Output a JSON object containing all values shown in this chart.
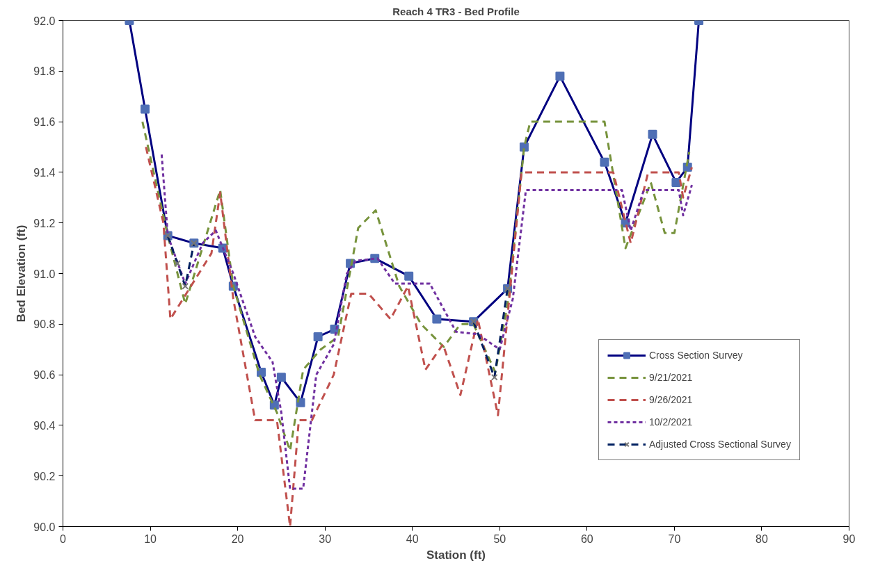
{
  "chart_data": {
    "type": "line",
    "title": "Reach 4 TR3 - Bed Profile",
    "xlabel": "Station (ft)",
    "ylabel": "Bed Elevation (ft)",
    "xlim": [
      0,
      90
    ],
    "xticks": [
      0,
      10,
      20,
      30,
      40,
      50,
      60,
      70,
      80,
      90
    ],
    "ylim": [
      90,
      92
    ],
    "yticks": [
      {
        "value": 90,
        "label": "90.0"
      },
      90.2,
      90.4,
      90.6,
      90.8,
      {
        "value": 91,
        "label": "91.0"
      },
      91.2,
      91.4,
      91.6,
      91.8,
      {
        "value": 92,
        "label": "92.0"
      }
    ],
    "grid": false,
    "legend": "right",
    "series": [
      {
        "name": "Cross Section Survey",
        "color": "#000080",
        "line_style": "solid",
        "marker": "square",
        "x": [
          7.6,
          9.4,
          12.0,
          15.0,
          18.3,
          19.5,
          22.7,
          24.2,
          25.0,
          27.2,
          29.2,
          31.1,
          32.9,
          35.7,
          39.6,
          42.8,
          47.0,
          50.9,
          52.8,
          56.9,
          62.0,
          64.4,
          67.5,
          70.2,
          71.5,
          72.8
        ],
        "values": [
          92.0,
          91.65,
          91.15,
          91.12,
          91.1,
          90.95,
          90.61,
          90.48,
          90.59,
          90.49,
          90.75,
          90.78,
          91.04,
          91.06,
          90.99,
          90.82,
          90.81,
          90.94,
          91.5,
          91.78,
          91.44,
          91.2,
          91.55,
          91.36,
          91.42,
          92.0
        ]
      },
      {
        "name": "9/21/2021",
        "color": "#77933c",
        "line_style": "dashed",
        "marker": "none",
        "x": [
          9.1,
          12.0,
          14.0,
          18.0,
          19.5,
          22.5,
          24.5,
          26.0,
          27.5,
          29.5,
          31.5,
          33.8,
          35.8,
          38.5,
          41.0,
          43.6,
          45.5,
          47.0,
          49.5,
          51.0,
          52.8,
          53.5,
          62.0,
          64.4,
          67.3,
          68.9,
          70.0,
          71.7
        ],
        "values": [
          91.6,
          91.15,
          90.88,
          91.33,
          90.95,
          90.6,
          90.45,
          90.3,
          90.62,
          90.7,
          90.75,
          91.18,
          91.25,
          90.95,
          90.8,
          90.71,
          90.8,
          90.8,
          90.61,
          90.9,
          91.5,
          91.6,
          91.6,
          91.1,
          91.36,
          91.16,
          91.16,
          91.48
        ]
      },
      {
        "name": "9/26/2021",
        "color": "#c0504d",
        "line_style": "dashed",
        "marker": "none",
        "x": [
          9.5,
          11.5,
          12.3,
          17.0,
          18.0,
          19.5,
          22.0,
          24.5,
          26.0,
          27.0,
          28.5,
          31.0,
          33.0,
          35.0,
          37.5,
          39.5,
          41.5,
          43.5,
          45.5,
          47.5,
          49.8,
          52.5,
          63.0,
          65.0,
          67.0,
          70.5,
          71.0,
          72.0
        ],
        "values": [
          91.5,
          91.2,
          90.82,
          91.08,
          91.32,
          90.9,
          90.42,
          90.42,
          90.0,
          90.42,
          90.42,
          90.6,
          90.92,
          90.92,
          90.82,
          90.95,
          90.62,
          90.72,
          90.52,
          90.82,
          90.44,
          91.4,
          91.4,
          91.12,
          91.4,
          91.4,
          91.3,
          91.42
        ]
      },
      {
        "name": "10/2/2021",
        "color": "#7030a0",
        "line_style": "dotted",
        "marker": "none",
        "x": [
          11.3,
          12.0,
          14.0,
          16.0,
          17.5,
          19.5,
          22.0,
          24.0,
          25.0,
          26.0,
          27.5,
          29.0,
          31.0,
          32.5,
          33.5,
          36.0,
          38.0,
          42.0,
          45.0,
          47.5,
          50.0,
          51.5,
          53.0,
          64.0,
          65.0,
          66.5,
          70.5,
          71.0,
          72.0
        ],
        "values": [
          91.47,
          91.15,
          90.96,
          91.12,
          91.17,
          91.0,
          90.75,
          90.65,
          90.45,
          90.15,
          90.15,
          90.6,
          90.72,
          91.0,
          91.05,
          91.06,
          90.96,
          90.96,
          90.77,
          90.76,
          90.7,
          90.9,
          91.33,
          91.33,
          91.17,
          91.33,
          91.33,
          91.23,
          91.35
        ]
      },
      {
        "name": "Adjusted Cross Sectional Survey",
        "color": "#002060",
        "line_style": "dashed",
        "marker": "cross",
        "x": [
          12.0,
          13.1,
          14.0,
          15.0,
          null,
          47.0,
          49.4,
          50.9
        ],
        "values": [
          91.15,
          91.04,
          90.95,
          91.12,
          null,
          90.81,
          90.59,
          90.94
        ]
      }
    ]
  }
}
